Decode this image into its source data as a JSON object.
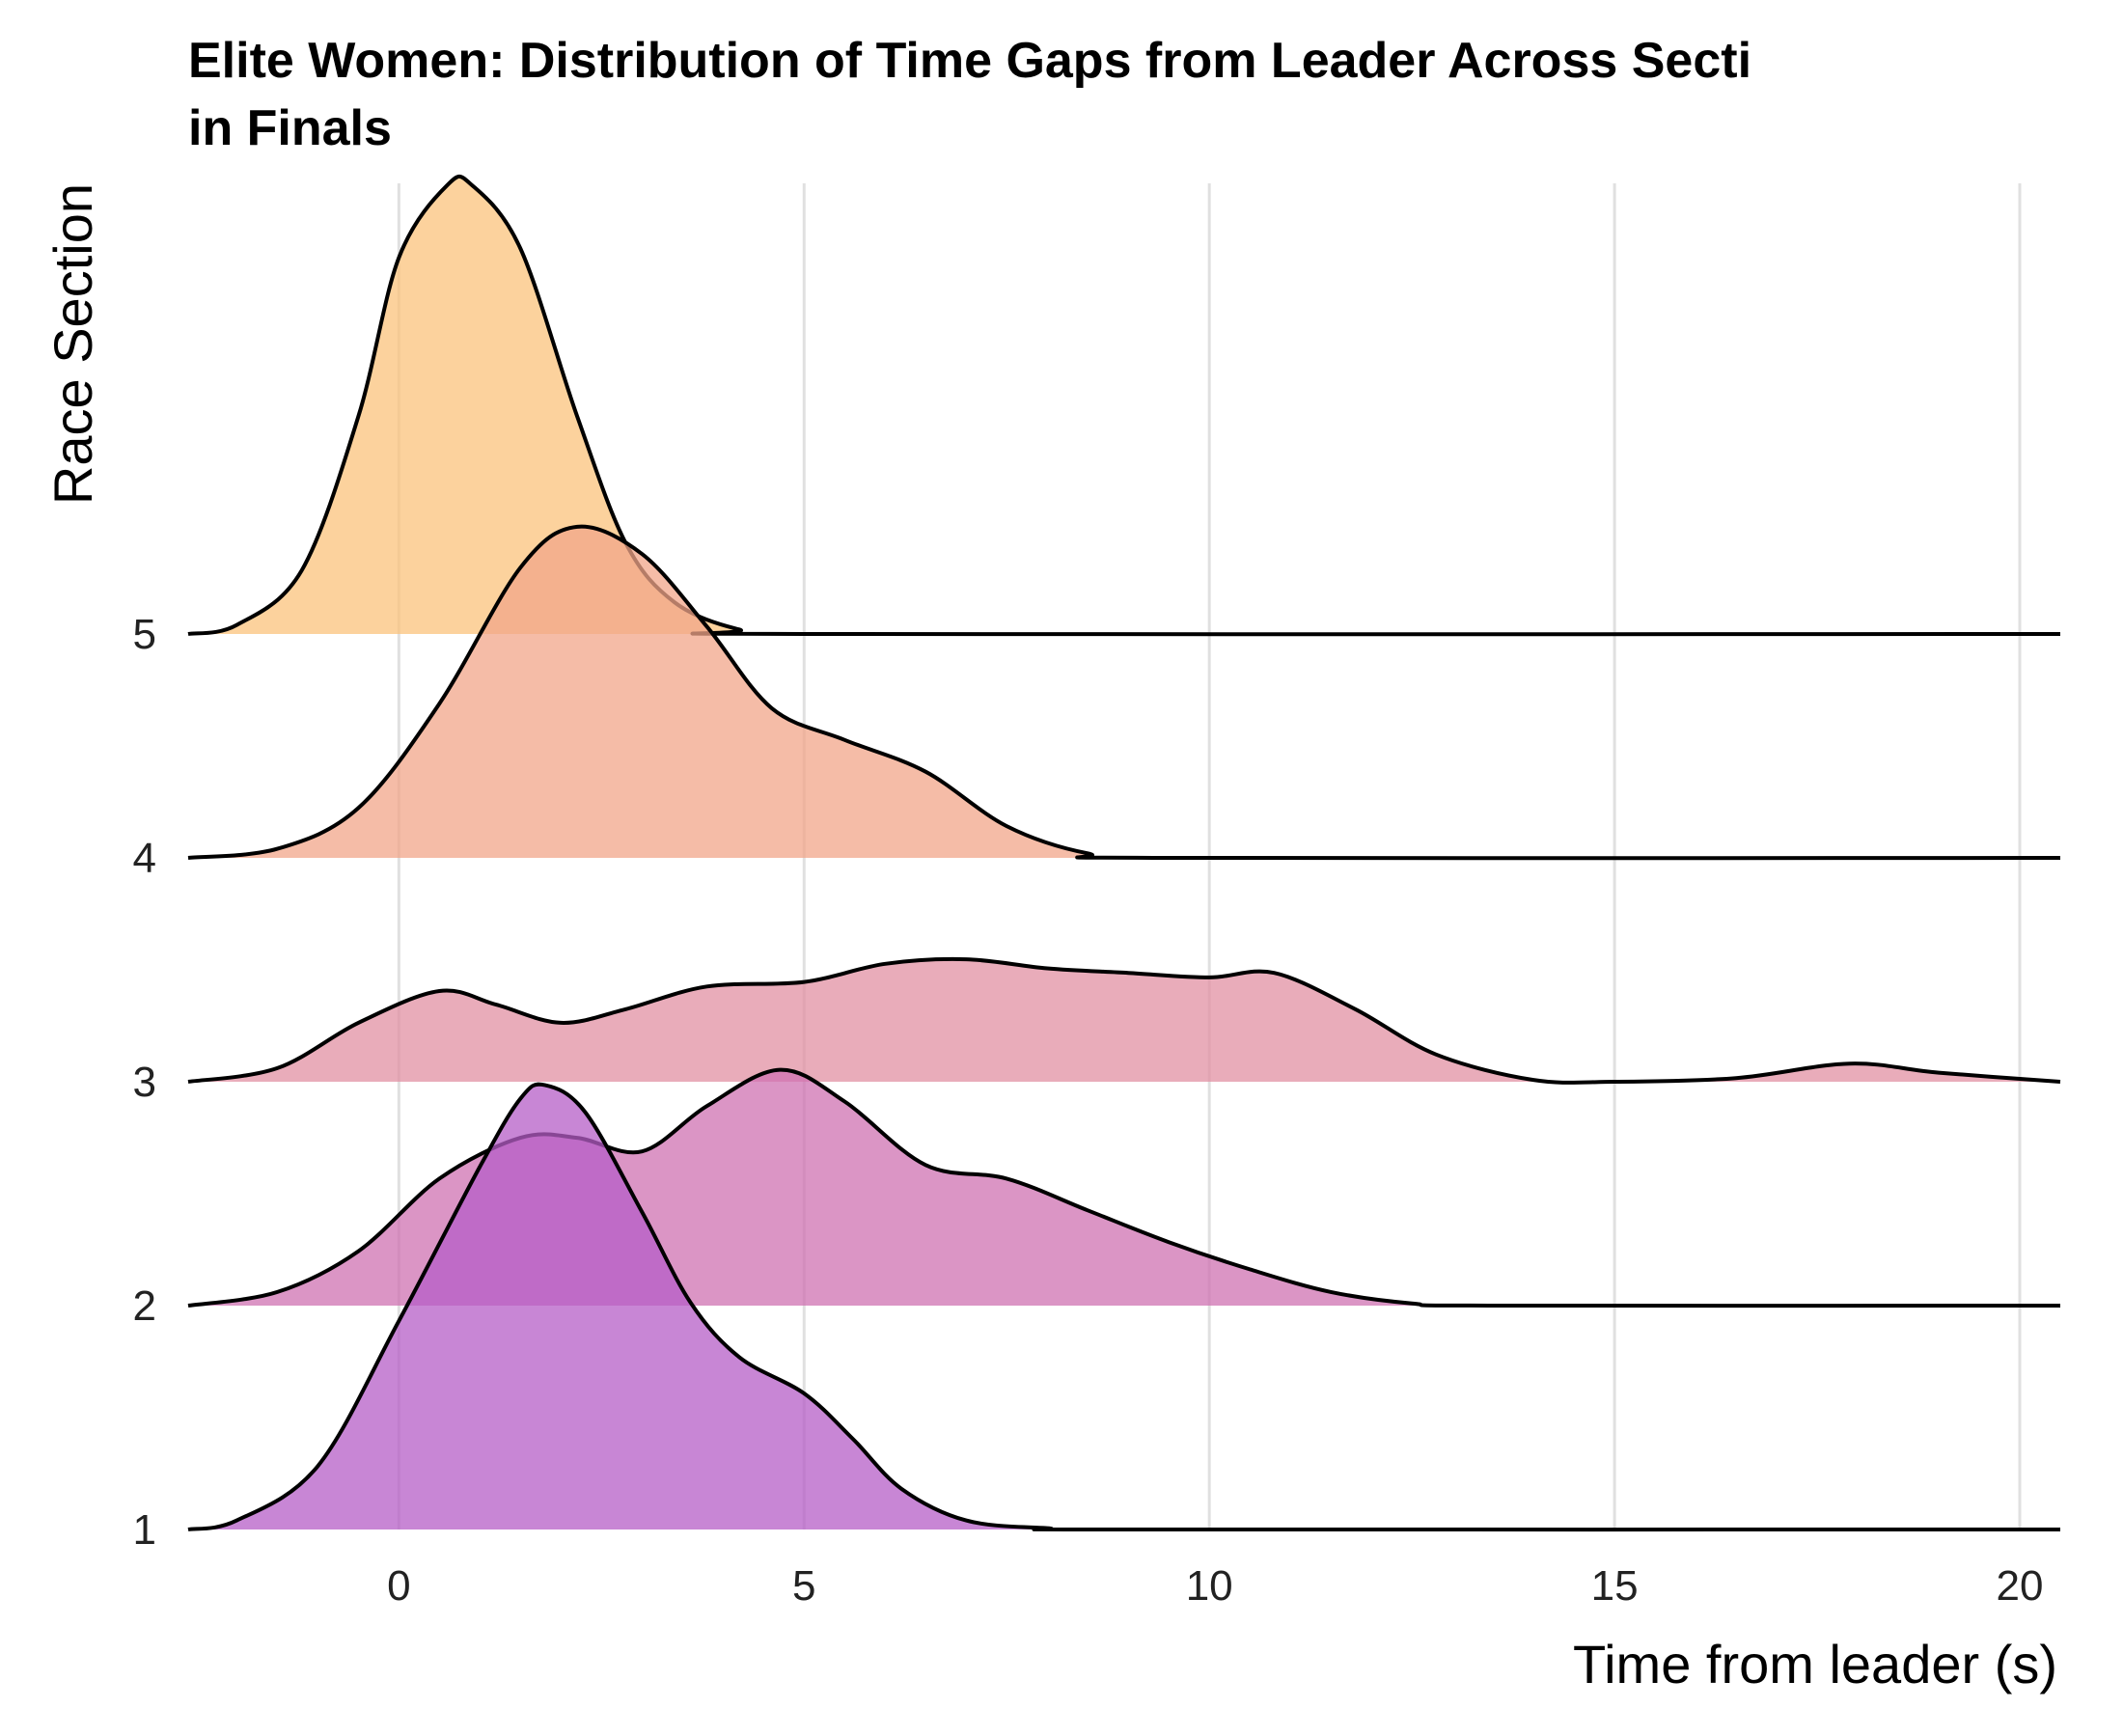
{
  "chart_data": {
    "type": "ridgeline",
    "title": "Elite Women: Distribution of Time Gaps from Leader Across Secti",
    "title_line2": "in Finals",
    "xlabel": "Time from leader (s)",
    "ylabel": "Race Section",
    "xlim": [
      -2.6,
      20.5
    ],
    "xticks": [
      0,
      5,
      10,
      15,
      20
    ],
    "grid": "vertical major gridlines",
    "series": [
      {
        "name": "1",
        "color": "#b55dc7",
        "points": [
          [
            -2.6,
            0
          ],
          [
            -2,
            0.02
          ],
          [
            -1,
            0.14
          ],
          [
            0,
            0.46
          ],
          [
            1,
            0.8
          ],
          [
            1.5,
            0.95
          ],
          [
            1.8,
            0.98
          ],
          [
            2.3,
            0.92
          ],
          [
            3,
            0.7
          ],
          [
            3.6,
            0.5
          ],
          [
            4.2,
            0.38
          ],
          [
            5,
            0.3
          ],
          [
            5.6,
            0.2
          ],
          [
            6.2,
            0.09
          ],
          [
            7,
            0.02
          ],
          [
            8,
            0.003
          ],
          [
            9,
            0
          ],
          [
            20.5,
            0
          ]
        ]
      },
      {
        "name": "2",
        "color": "#cf72b2",
        "points": [
          [
            -2.6,
            0
          ],
          [
            -1.5,
            0.03
          ],
          [
            -0.5,
            0.12
          ],
          [
            0.5,
            0.28
          ],
          [
            1.5,
            0.37
          ],
          [
            2.2,
            0.37
          ],
          [
            3,
            0.34
          ],
          [
            3.8,
            0.44
          ],
          [
            4.7,
            0.52
          ],
          [
            5.5,
            0.45
          ],
          [
            6.5,
            0.31
          ],
          [
            7.5,
            0.28
          ],
          [
            8.5,
            0.21
          ],
          [
            9.5,
            0.14
          ],
          [
            10.5,
            0.08
          ],
          [
            11.5,
            0.03
          ],
          [
            12.5,
            0.005
          ],
          [
            13.5,
            0
          ],
          [
            20.5,
            0
          ]
        ]
      },
      {
        "name": "3",
        "color": "#e190a3",
        "points": [
          [
            -2.6,
            0
          ],
          [
            -1.5,
            0.03
          ],
          [
            -0.5,
            0.13
          ],
          [
            0.5,
            0.2
          ],
          [
            1.2,
            0.17
          ],
          [
            2,
            0.13
          ],
          [
            2.8,
            0.16
          ],
          [
            3.8,
            0.21
          ],
          [
            5,
            0.22
          ],
          [
            6,
            0.26
          ],
          [
            7,
            0.27
          ],
          [
            8,
            0.25
          ],
          [
            9,
            0.24
          ],
          [
            10,
            0.23
          ],
          [
            10.8,
            0.24
          ],
          [
            11.8,
            0.16
          ],
          [
            12.8,
            0.06
          ],
          [
            14,
            0.004
          ],
          [
            15,
            0
          ],
          [
            16.5,
            0.008
          ],
          [
            17.9,
            0.04
          ],
          [
            19,
            0.02
          ],
          [
            20.5,
            0
          ]
        ]
      },
      {
        "name": "4",
        "color": "#f2a58a",
        "points": [
          [
            -2.6,
            0
          ],
          [
            -1.5,
            0.02
          ],
          [
            -0.5,
            0.11
          ],
          [
            0.5,
            0.34
          ],
          [
            1.5,
            0.64
          ],
          [
            2.2,
            0.73
          ],
          [
            3,
            0.67
          ],
          [
            3.8,
            0.51
          ],
          [
            4.6,
            0.33
          ],
          [
            5.5,
            0.26
          ],
          [
            6.5,
            0.19
          ],
          [
            7.5,
            0.07
          ],
          [
            8.5,
            0.01
          ],
          [
            9.5,
            0
          ],
          [
            20.5,
            0
          ]
        ]
      },
      {
        "name": "5",
        "color": "#fbc37c",
        "points": [
          [
            -2.6,
            0
          ],
          [
            -2,
            0.02
          ],
          [
            -1.2,
            0.14
          ],
          [
            -0.5,
            0.48
          ],
          [
            0,
            0.83
          ],
          [
            0.6,
            0.99
          ],
          [
            0.9,
            0.99
          ],
          [
            1.5,
            0.85
          ],
          [
            2.2,
            0.48
          ],
          [
            2.8,
            0.2
          ],
          [
            3.4,
            0.07
          ],
          [
            4.2,
            0.01
          ],
          [
            5,
            0
          ],
          [
            20.5,
            0
          ]
        ]
      }
    ]
  }
}
